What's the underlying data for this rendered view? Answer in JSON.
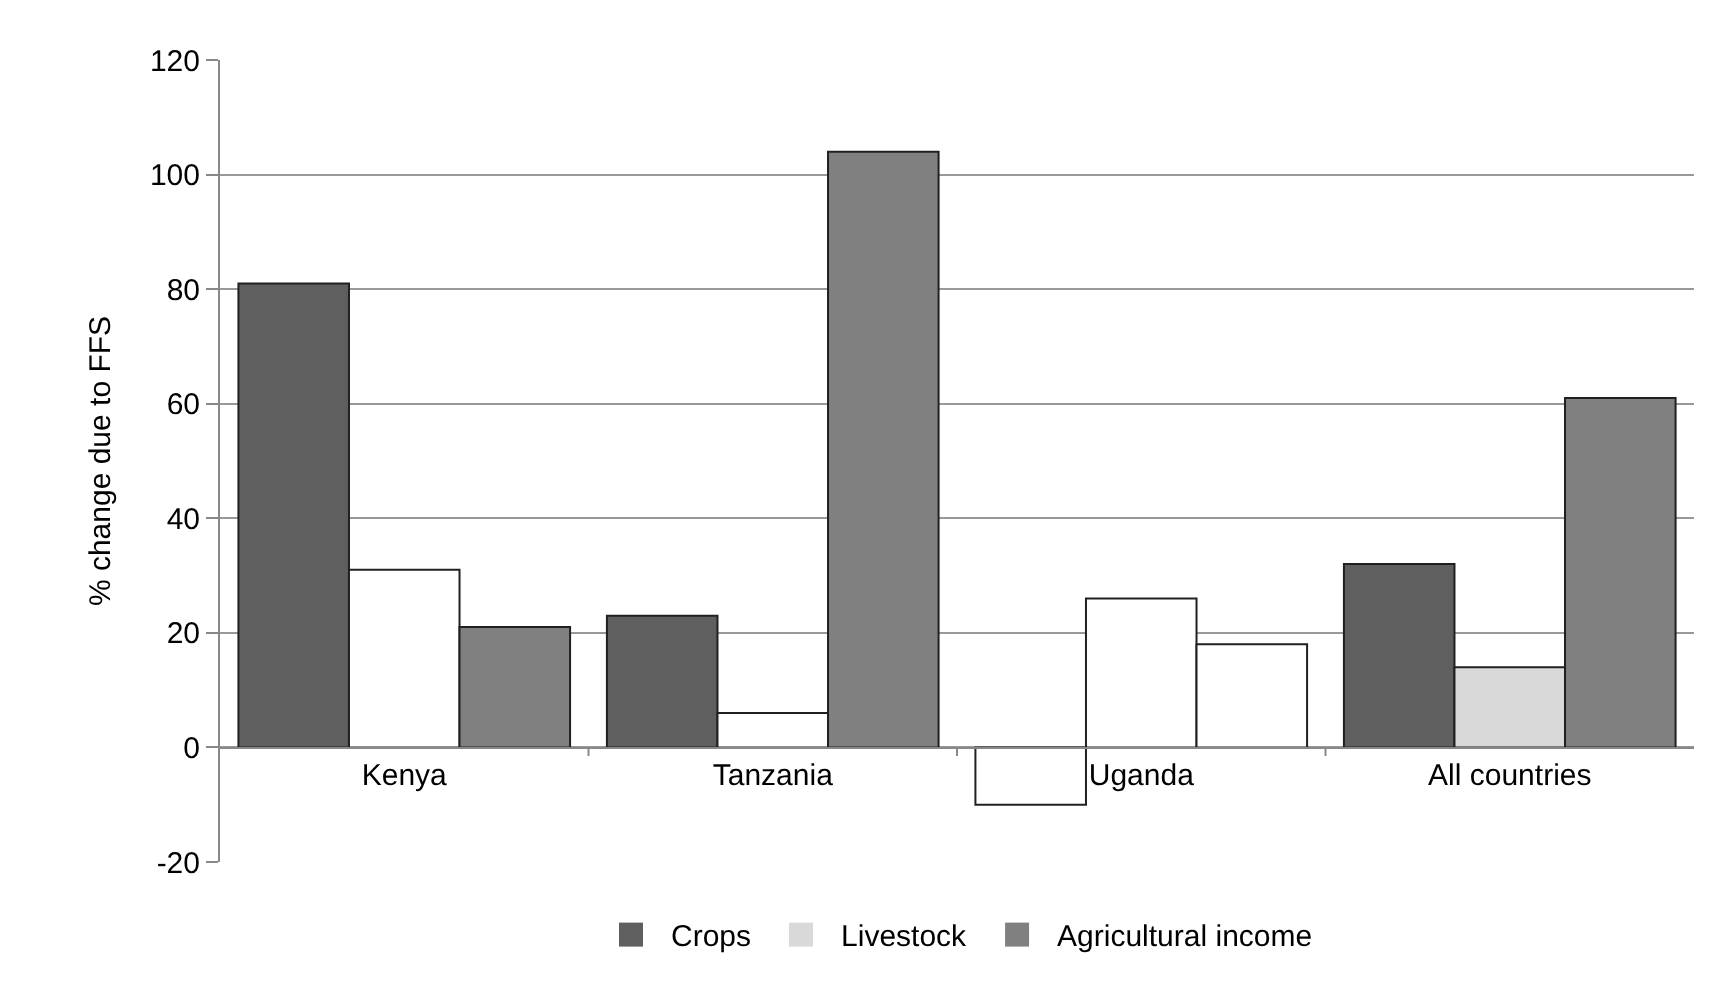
{
  "chart_data": {
    "type": "bar",
    "ylabel": "% change due to FFS",
    "categories": [
      "Kenya",
      "Tanzania",
      "Uganda",
      "All countries"
    ],
    "series": [
      {
        "name": "Crops",
        "color": "#5f5f5f",
        "colors": [
          "#5f5f5f",
          "#5f5f5f",
          "#ffffff",
          "#5f5f5f"
        ],
        "values": [
          81,
          23,
          -10,
          32
        ]
      },
      {
        "name": "Livestock",
        "color": "#d9d9d9",
        "colors": [
          "#ffffff",
          "#ffffff",
          "#ffffff",
          "#d9d9d9"
        ],
        "values": [
          31,
          6,
          26,
          14
        ]
      },
      {
        "name": "Agricultural income",
        "color": "#808080",
        "colors": [
          "#808080",
          "#808080",
          "#ffffff",
          "#808080"
        ],
        "values": [
          21,
          104,
          18,
          61
        ]
      }
    ],
    "ylim": [
      -20,
      120
    ],
    "yticks": [
      -20,
      0,
      20,
      40,
      60,
      80,
      100,
      120
    ],
    "grid": "y",
    "legend": "bottom"
  }
}
